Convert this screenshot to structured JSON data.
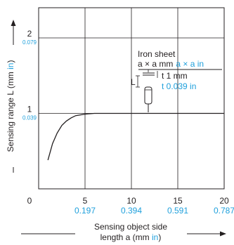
{
  "colors": {
    "axis": "#231f20",
    "accent": "#1fa0dc",
    "background": "#ffffff"
  },
  "chart_data": {
    "type": "line",
    "xlabel_line1": "Sensing object side",
    "xlabel_line2_prefix": "length a (mm ",
    "xlabel_unit_alt": "in",
    "xlabel_line2_suffix": ")",
    "ylabel_prefix": "Sensing range L (mm ",
    "ylabel_unit_alt": "in",
    "ylabel_suffix": ")",
    "xlim": [
      0,
      20
    ],
    "ylim": [
      0,
      2.4
    ],
    "origin_label": "0",
    "x_ticks": [
      {
        "mm": 5,
        "mm_label": "5",
        "in_label": "0.197"
      },
      {
        "mm": 10,
        "mm_label": "10",
        "in_label": "0.394"
      },
      {
        "mm": 15,
        "mm_label": "15",
        "in_label": "0.591"
      },
      {
        "mm": 20,
        "mm_label": "20",
        "in_label": "0.787"
      }
    ],
    "y_ticks": [
      {
        "mm": 1,
        "mm_label": "1",
        "in_label": "0.039"
      },
      {
        "mm": 2,
        "mm_label": "2",
        "in_label": "0.079"
      }
    ],
    "grid": true,
    "series": [
      {
        "x": [
          1.0,
          1.5,
          2.0,
          2.5,
          3.0,
          3.5,
          4.0,
          5.0,
          6.0,
          7.0,
          10.0,
          15.0,
          20.0
        ],
        "y": [
          0.38,
          0.6,
          0.74,
          0.84,
          0.9,
          0.94,
          0.97,
          0.99,
          1.0,
          1.0,
          1.0,
          1.0,
          1.0
        ]
      }
    ],
    "annotation": {
      "title": "Iron sheet",
      "size_mm": "a × a mm",
      "size_in": "a × a in",
      "thickness_mm": "t 1 mm",
      "thickness_in": "t 0.039 in",
      "distance_label": "L"
    }
  }
}
